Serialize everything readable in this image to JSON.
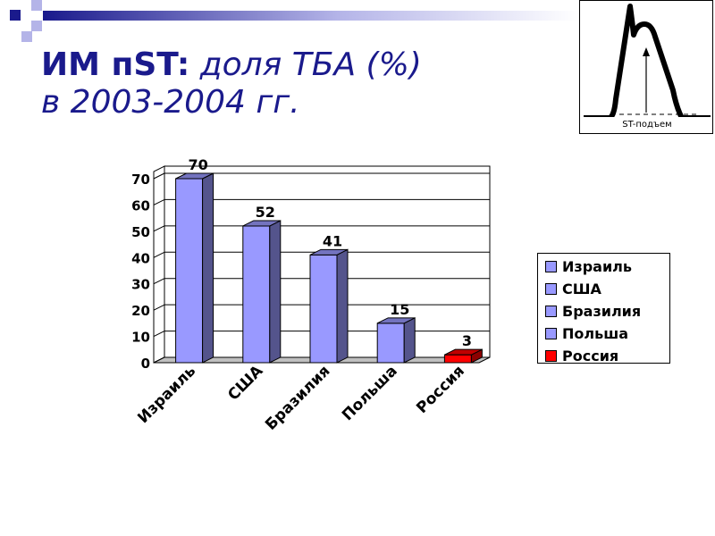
{
  "title": {
    "bold_part": "ИМ пST:",
    "italic_part_line1": "доля ТБА (%)",
    "line2": "в 2003-2004 гг."
  },
  "ecg_inset": {
    "label": "ST-подъем",
    "icon": "st-elevation-ecg-icon"
  },
  "colors": {
    "title": "#1a1a8c",
    "bar_main": "#9999ff",
    "bar_highlight": "#ff0000",
    "deco_dark": "#1a1a8c",
    "deco_light": "#b4b4e8"
  },
  "chart_data": {
    "type": "bar",
    "categories": [
      "Израиль",
      "США",
      "Бразилия",
      "Польша",
      "Россия"
    ],
    "values": [
      70,
      52,
      41,
      15,
      3
    ],
    "bar_colors": [
      "#9999ff",
      "#9999ff",
      "#9999ff",
      "#9999ff",
      "#ff0000"
    ],
    "ylim": [
      0,
      70
    ],
    "yticks": [
      0,
      10,
      20,
      30,
      40,
      50,
      60,
      70
    ],
    "grid": true,
    "legend": {
      "position": "right",
      "entries": [
        {
          "label": "Израиль",
          "color": "#9999ff"
        },
        {
          "label": "США",
          "color": "#9999ff"
        },
        {
          "label": "Бразилия",
          "color": "#9999ff"
        },
        {
          "label": "Польша",
          "color": "#9999ff"
        },
        {
          "label": "Россия",
          "color": "#ff0000"
        }
      ]
    },
    "style": "3d-columns"
  }
}
